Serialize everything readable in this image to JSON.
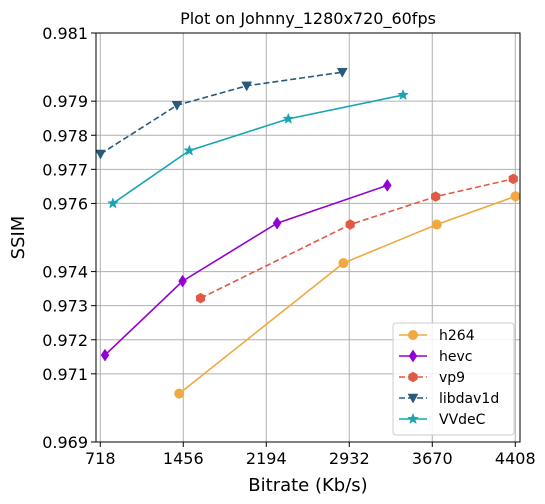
{
  "chart_data": {
    "type": "line",
    "title": "Plot on Johnny_1280x720_60fps",
    "xlabel": "Bitrate (Kb/s)",
    "ylabel": "SSIM",
    "xlim": [
      680,
      4450
    ],
    "ylim": [
      0.969,
      0.981
    ],
    "xticks": [
      718,
      1456,
      2194,
      2932,
      3670,
      4408
    ],
    "yticks": [
      0.969,
      0.971,
      0.972,
      0.973,
      0.974,
      0.976,
      0.977,
      0.978,
      0.979,
      0.981
    ],
    "grid": true,
    "legend_position": "bottom-right",
    "series": [
      {
        "name": "h264",
        "color": "#f0a840",
        "marker": "circle",
        "dash": "solid",
        "x": [
          1420,
          2880,
          3710,
          4410
        ],
        "y": [
          0.97042,
          0.97425,
          0.97538,
          0.97621
        ]
      },
      {
        "name": "hevc",
        "color": "#9400d3",
        "marker": "diamond",
        "dash": "solid",
        "x": [
          760,
          1450,
          2290,
          3270
        ],
        "y": [
          0.97155,
          0.97372,
          0.97542,
          0.97653
        ]
      },
      {
        "name": "vp9",
        "color": "#e05a47",
        "marker": "hexagon",
        "dash": "dashed",
        "x": [
          1610,
          2940,
          3700,
          4390
        ],
        "y": [
          0.97322,
          0.97538,
          0.9762,
          0.97672
        ]
      },
      {
        "name": "libdav1d",
        "color": "#2a5a7a",
        "marker": "triangle-down",
        "dash": "dashed",
        "x": [
          720,
          1400,
          2020,
          2870
        ],
        "y": [
          0.97745,
          0.97888,
          0.97945,
          0.97985
        ]
      },
      {
        "name": "VVdeC",
        "color": "#17a5b3",
        "marker": "star",
        "dash": "solid",
        "x": [
          830,
          1510,
          2390,
          3410
        ],
        "y": [
          0.976,
          0.97755,
          0.97848,
          0.97918
        ]
      }
    ]
  }
}
